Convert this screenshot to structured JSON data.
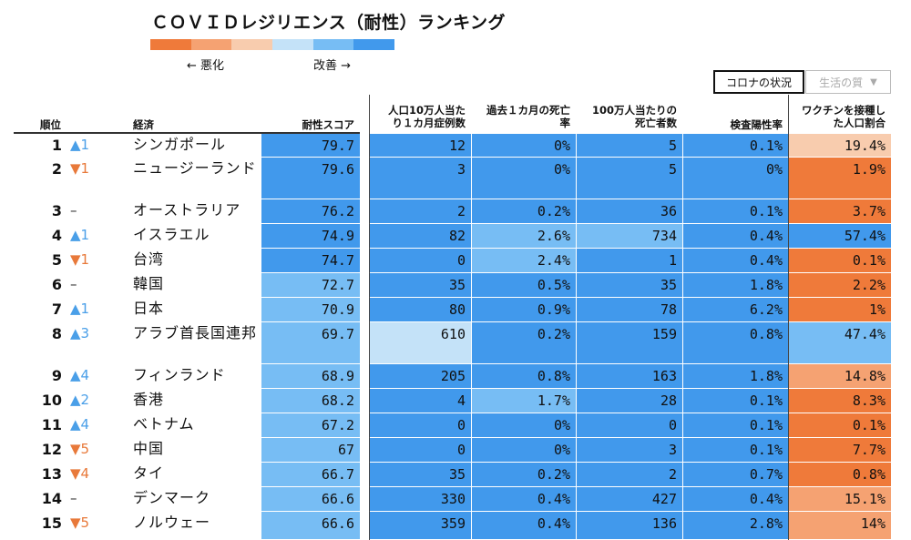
{
  "title": "ＣＯＶＩＤレジリエンス（耐性）ランキング",
  "legend": {
    "colors": [
      "#ef7a3a",
      "#f5a272",
      "#f8ccae",
      "#c4e2f8",
      "#77bdf4",
      "#4199ec"
    ],
    "worse": "← 悪化",
    "better": "改善 →"
  },
  "buttons": {
    "covid": "コロナの状況",
    "life": "生活の質",
    "life_arrow": "▼"
  },
  "headers": {
    "rank": "順位",
    "economy": "経済",
    "score": "耐性スコア",
    "cases": [
      "人口10万人当た",
      "り１カ月症例数"
    ],
    "deaths": [
      "過去１カ月の死亡",
      "率"
    ],
    "dpm": [
      "100万人当たりの",
      "死亡者数"
    ],
    "positivity": "検査陽性率",
    "vaccine": [
      "ワクチンを接種し",
      "た人口割合"
    ]
  },
  "palette": {
    "dark_blue": "#4199ec",
    "mid_blue": "#77bdf4",
    "light_blue": "#c4e2f8",
    "light_orange": "#f8ccae",
    "mid_orange": "#f5a272",
    "orange": "#ef7a3a"
  },
  "rows": [
    {
      "rank": "1",
      "dir": "up",
      "chg": "▲1",
      "name": "シンガポール",
      "score": "79.7",
      "cases": "12",
      "death": "0%",
      "dpm": "5",
      "pos": "0.1%",
      "vax": "19.4%",
      "colors": [
        "dark_blue",
        "dark_blue",
        "dark_blue",
        "dark_blue",
        "dark_blue",
        "light_orange"
      ]
    },
    {
      "rank": "2",
      "dir": "down",
      "chg": "▼1",
      "name": "ニュージーランド",
      "score": "79.6",
      "cases": "3",
      "death": "0%",
      "dpm": "5",
      "pos": "0%",
      "vax": "1.9%",
      "colors": [
        "dark_blue",
        "dark_blue",
        "dark_blue",
        "dark_blue",
        "dark_blue",
        "orange"
      ]
    },
    {
      "rank": "3",
      "dir": "same",
      "chg": "–",
      "name": "オーストラリア",
      "score": "76.2",
      "cases": "2",
      "death": "0.2%",
      "dpm": "36",
      "pos": "0.1%",
      "vax": "3.7%",
      "colors": [
        "dark_blue",
        "dark_blue",
        "dark_blue",
        "dark_blue",
        "dark_blue",
        "orange"
      ]
    },
    {
      "rank": "4",
      "dir": "up",
      "chg": "▲1",
      "name": "イスラエル",
      "score": "74.9",
      "cases": "82",
      "death": "2.6%",
      "dpm": "734",
      "pos": "0.4%",
      "vax": "57.4%",
      "colors": [
        "dark_blue",
        "dark_blue",
        "mid_blue",
        "mid_blue",
        "dark_blue",
        "dark_blue"
      ]
    },
    {
      "rank": "5",
      "dir": "down",
      "chg": "▼1",
      "name": "台湾",
      "score": "74.7",
      "cases": "0",
      "death": "2.4%",
      "dpm": "1",
      "pos": "0.4%",
      "vax": "0.1%",
      "colors": [
        "dark_blue",
        "dark_blue",
        "mid_blue",
        "dark_blue",
        "dark_blue",
        "orange"
      ]
    },
    {
      "rank": "6",
      "dir": "same",
      "chg": "–",
      "name": "韓国",
      "score": "72.7",
      "cases": "35",
      "death": "0.5%",
      "dpm": "35",
      "pos": "1.8%",
      "vax": "2.2%",
      "colors": [
        "mid_blue",
        "dark_blue",
        "dark_blue",
        "dark_blue",
        "dark_blue",
        "orange"
      ]
    },
    {
      "rank": "7",
      "dir": "up",
      "chg": "▲1",
      "name": "日本",
      "score": "70.9",
      "cases": "80",
      "death": "0.9%",
      "dpm": "78",
      "pos": "6.2%",
      "vax": "1%",
      "colors": [
        "mid_blue",
        "dark_blue",
        "dark_blue",
        "dark_blue",
        "dark_blue",
        "orange"
      ]
    },
    {
      "rank": "8",
      "dir": "up",
      "chg": "▲3",
      "name": "アラブ首長国連邦",
      "score": "69.7",
      "cases": "610",
      "death": "0.2%",
      "dpm": "159",
      "pos": "0.8%",
      "vax": "47.4%",
      "colors": [
        "mid_blue",
        "light_blue",
        "dark_blue",
        "dark_blue",
        "dark_blue",
        "mid_blue"
      ]
    },
    {
      "rank": "9",
      "dir": "up",
      "chg": "▲4",
      "name": "フィンランド",
      "score": "68.9",
      "cases": "205",
      "death": "0.8%",
      "dpm": "163",
      "pos": "1.8%",
      "vax": "14.8%",
      "colors": [
        "mid_blue",
        "dark_blue",
        "dark_blue",
        "dark_blue",
        "dark_blue",
        "mid_orange"
      ]
    },
    {
      "rank": "10",
      "dir": "up",
      "chg": "▲2",
      "name": "香港",
      "score": "68.2",
      "cases": "4",
      "death": "1.7%",
      "dpm": "28",
      "pos": "0.1%",
      "vax": "8.3%",
      "colors": [
        "mid_blue",
        "dark_blue",
        "mid_blue",
        "dark_blue",
        "dark_blue",
        "orange"
      ]
    },
    {
      "rank": "11",
      "dir": "up",
      "chg": "▲4",
      "name": "ベトナム",
      "score": "67.2",
      "cases": "0",
      "death": "0%",
      "dpm": "0",
      "pos": "0.1%",
      "vax": "0.1%",
      "colors": [
        "mid_blue",
        "dark_blue",
        "dark_blue",
        "dark_blue",
        "dark_blue",
        "orange"
      ]
    },
    {
      "rank": "12",
      "dir": "down",
      "chg": "▼5",
      "name": "中国",
      "score": "67",
      "cases": "0",
      "death": "0%",
      "dpm": "3",
      "pos": "0.1%",
      "vax": "7.7%",
      "colors": [
        "mid_blue",
        "dark_blue",
        "dark_blue",
        "dark_blue",
        "dark_blue",
        "orange"
      ]
    },
    {
      "rank": "13",
      "dir": "down",
      "chg": "▼4",
      "name": "タイ",
      "score": "66.7",
      "cases": "35",
      "death": "0.2%",
      "dpm": "2",
      "pos": "0.7%",
      "vax": "0.8%",
      "colors": [
        "mid_blue",
        "dark_blue",
        "dark_blue",
        "dark_blue",
        "dark_blue",
        "orange"
      ]
    },
    {
      "rank": "14",
      "dir": "same",
      "chg": "–",
      "name": "デンマーク",
      "score": "66.6",
      "cases": "330",
      "death": "0.4%",
      "dpm": "427",
      "pos": "0.4%",
      "vax": "15.1%",
      "colors": [
        "mid_blue",
        "dark_blue",
        "dark_blue",
        "dark_blue",
        "dark_blue",
        "mid_orange"
      ]
    },
    {
      "rank": "15",
      "dir": "down",
      "chg": "▼5",
      "name": "ノルウェー",
      "score": "66.6",
      "cases": "359",
      "death": "0.4%",
      "dpm": "136",
      "pos": "2.8%",
      "vax": "14%",
      "colors": [
        "mid_blue",
        "dark_blue",
        "dark_blue",
        "dark_blue",
        "dark_blue",
        "mid_orange"
      ]
    }
  ]
}
